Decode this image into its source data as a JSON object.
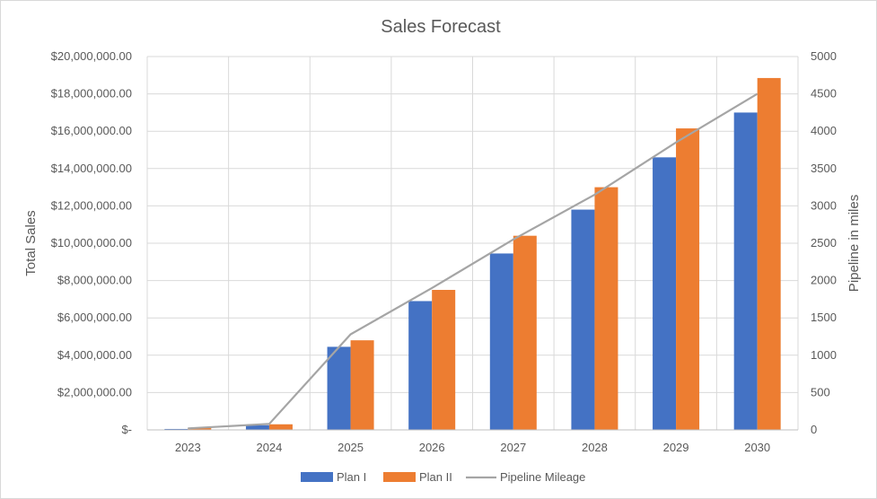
{
  "chart_data": {
    "type": "bar",
    "title": "Sales Forecast",
    "categories": [
      "2023",
      "2024",
      "2025",
      "2026",
      "2027",
      "2028",
      "2029",
      "2030"
    ],
    "ylabel": "Total Sales",
    "y2label": "Pipeline in miles",
    "ylim": [
      0,
      20000000
    ],
    "y2lim": [
      0,
      5000
    ],
    "y_ticks": [
      0,
      2000000,
      4000000,
      6000000,
      8000000,
      10000000,
      12000000,
      14000000,
      16000000,
      18000000,
      20000000
    ],
    "y_tick_labels": [
      "$-",
      "$2,000,000.00",
      "$4,000,000.00",
      "$6,000,000.00",
      "$8,000,000.00",
      "$10,000,000.00",
      "$12,000,000.00",
      "$14,000,000.00",
      "$16,000,000.00",
      "$18,000,000.00",
      "$20,000,000.00"
    ],
    "y2_ticks": [
      0,
      500,
      1000,
      1500,
      2000,
      2500,
      3000,
      3500,
      4000,
      4500,
      5000
    ],
    "y2_tick_labels": [
      "0",
      "500",
      "1000",
      "1500",
      "2000",
      "2500",
      "3000",
      "3500",
      "4000",
      "4500",
      "5000"
    ],
    "grid": true,
    "legend_position": "bottom",
    "series": [
      {
        "name": "Plan I",
        "kind": "bar",
        "axis": "left",
        "color": "#4472C4",
        "values": [
          50000,
          250000,
          4450000,
          6900000,
          9450000,
          11800000,
          14600000,
          17000000
        ]
      },
      {
        "name": "Plan II",
        "kind": "bar",
        "axis": "left",
        "color": "#ED7D31",
        "values": [
          100000,
          300000,
          4800000,
          7500000,
          10400000,
          13000000,
          16150000,
          18850000
        ]
      },
      {
        "name": "Pipeline Mileage",
        "kind": "line",
        "axis": "right",
        "color": "#A5A5A5",
        "values": [
          20,
          80,
          1280,
          1900,
          2550,
          3150,
          3850,
          4500
        ]
      }
    ]
  }
}
